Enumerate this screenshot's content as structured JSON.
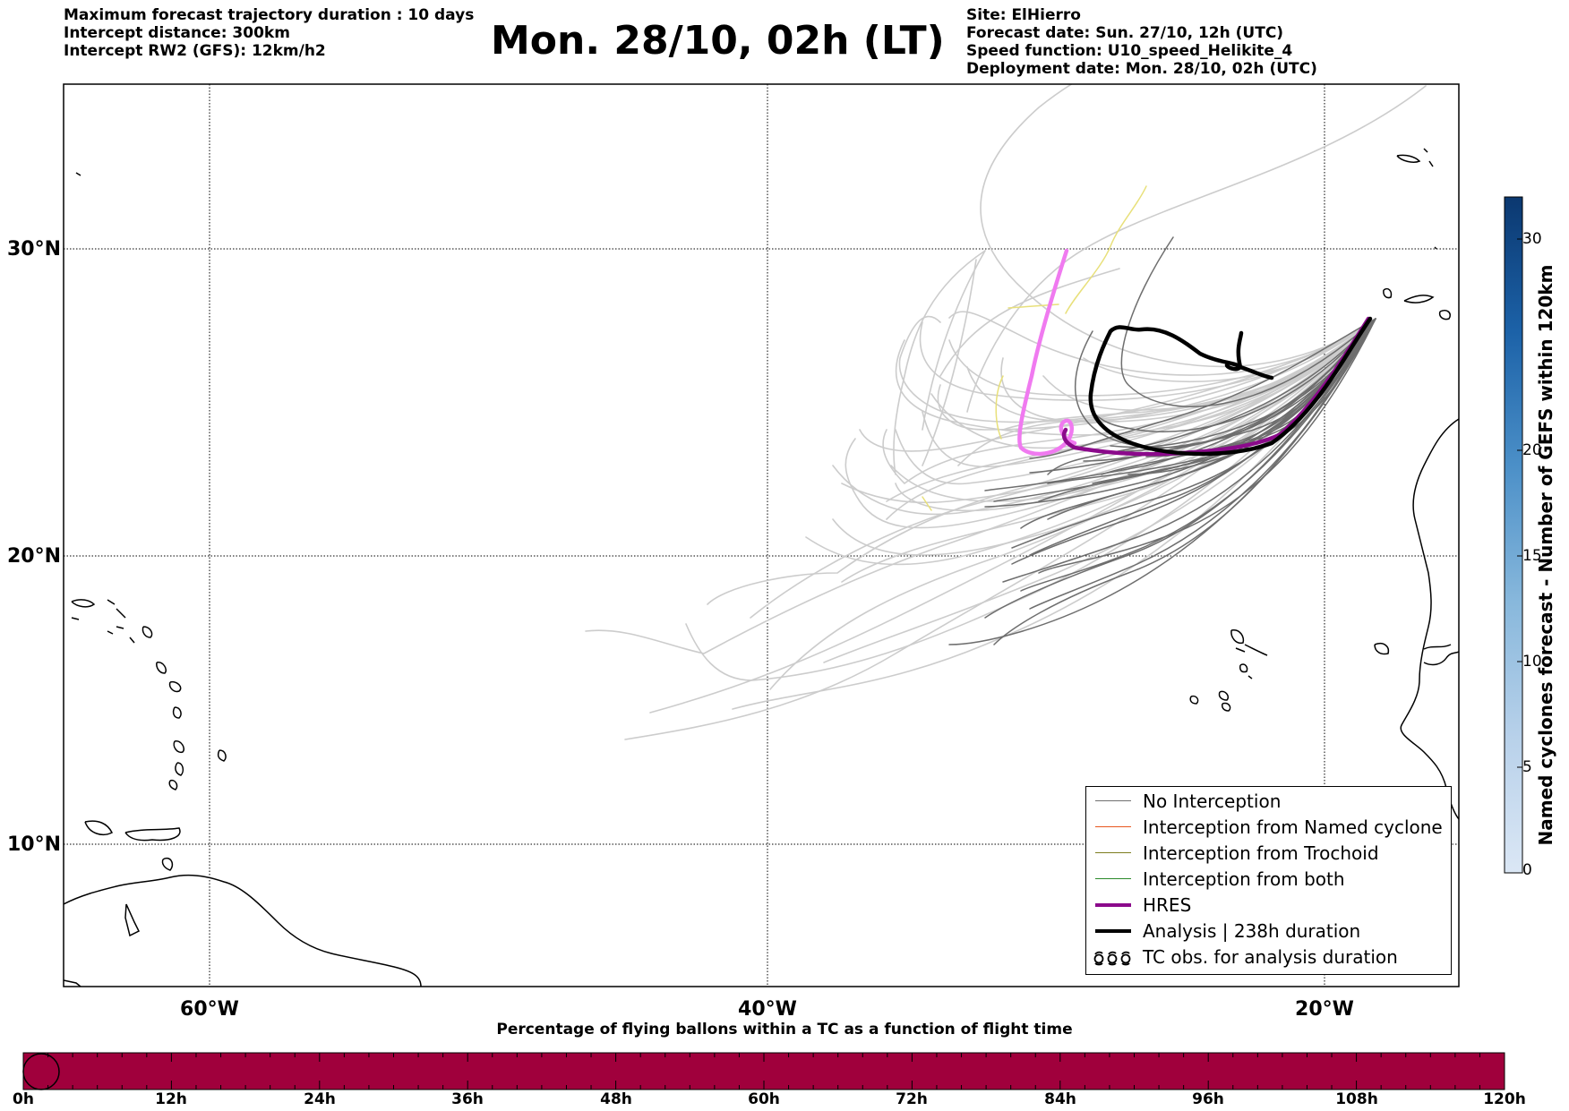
{
  "header": {
    "left_lines": [
      "Maximum forecast trajectory duration : 10 days",
      "Intercept distance: 300km",
      "Intercept RW2 (GFS):  12km/h2"
    ],
    "title": "Mon. 28/10, 02h (LT)",
    "right_lines": [
      "Site: ElHierro",
      "Forecast date: Sun. 27/10, 12h (UTC)",
      "Speed function: U10_speed_Helikite_4",
      "Deployment date: Mon. 28/10, 02h (UTC)"
    ]
  },
  "map": {
    "lat_labels": [
      "30°N",
      "20°N",
      "10°N"
    ],
    "lon_labels": [
      "60°W",
      "40°W",
      "20°W"
    ],
    "colors": {
      "no_interception": "#6e6e6e",
      "faded": "#cccccc",
      "hres": "#8b0a8b",
      "hres_faded": "#f07af0",
      "analysis": "#000000",
      "yellow": "#e8e07a"
    }
  },
  "legend": {
    "items": [
      {
        "label": "No Interception",
        "color": "#707070",
        "width": 1.5
      },
      {
        "label": "Interception from Named cyclone",
        "color": "#e8571f",
        "width": 1.5
      },
      {
        "label": "Interception from Trochoid",
        "color": "#7d7d1f",
        "width": 1.5
      },
      {
        "label": "Interception from both",
        "color": "#2a8a2a",
        "width": 1.5
      },
      {
        "label": "HRES",
        "color": "#8b0a8b",
        "width": 4
      },
      {
        "label": "Analysis | 238h duration",
        "color": "#000000",
        "width": 4
      },
      {
        "label": "TC obs. for analysis duration",
        "color": "#000000",
        "width": 0,
        "icon": "cyclone-symbols"
      }
    ]
  },
  "colorbar": {
    "label": "Named cyclones forecast - Number of GEFS within 120km",
    "ticks": [
      "30",
      "20",
      "15",
      "10",
      "5",
      "0"
    ]
  },
  "percentage_bar": {
    "title": "Percentage of flying ballons within a TC as a function of flight time",
    "color": "#a0003c",
    "ticks": [
      "0h",
      "12h",
      "24h",
      "36h",
      "48h",
      "60h",
      "72h",
      "84h",
      "96h",
      "108h",
      "120h"
    ]
  }
}
